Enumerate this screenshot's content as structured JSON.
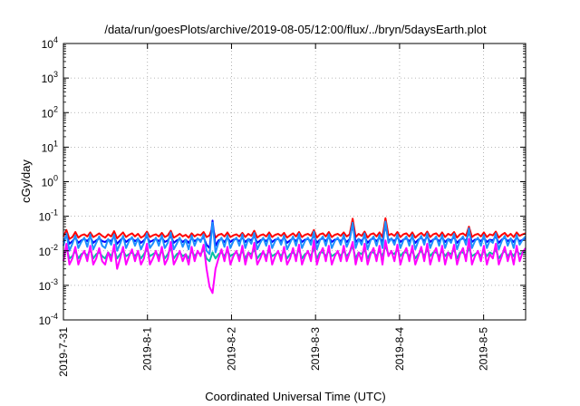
{
  "chart_data": {
    "type": "line",
    "title": "/data/run/goesPlots/archive/2019-08-05/12:00/flux/../bryn/5daysEarth.plot",
    "xlabel": "Coordinated Universal Time (UTC)",
    "ylabel": "cGy/day",
    "yscale": "log",
    "ylim": [
      0.0001,
      10000
    ],
    "xlim": [
      0,
      5.5
    ],
    "x_unit": "days since 2019-07-31 00:00 UTC",
    "grid": true,
    "legend": "none",
    "x_ticks": [
      {
        "x": 0,
        "label": "2019-7-31"
      },
      {
        "x": 1,
        "label": "2019-8-1"
      },
      {
        "x": 2,
        "label": "2019-8-2"
      },
      {
        "x": 3,
        "label": "2019-8-3"
      },
      {
        "x": 4,
        "label": "2019-8-4"
      },
      {
        "x": 5,
        "label": "2019-8-5"
      }
    ],
    "y_ticks": [
      {
        "exp": -4,
        "value": 0.0001
      },
      {
        "exp": -3,
        "value": 0.001
      },
      {
        "exp": -2,
        "value": 0.01
      },
      {
        "exp": -1,
        "value": 0.1
      },
      {
        "exp": 0,
        "value": 1
      },
      {
        "exp": 1,
        "value": 10
      },
      {
        "exp": 2,
        "value": 100
      },
      {
        "exp": 3,
        "value": 1000
      },
      {
        "exp": 4,
        "value": 10000
      }
    ],
    "series": [
      {
        "color": "#ff0000",
        "values": [
          0.026,
          0.04,
          0.022,
          0.025,
          0.035,
          0.024,
          0.028,
          0.03,
          0.026,
          0.034,
          0.025,
          0.028,
          0.032,
          0.027,
          0.024,
          0.03,
          0.026,
          0.037,
          0.023,
          0.028,
          0.034,
          0.025,
          0.029,
          0.032,
          0.026,
          0.031,
          0.024,
          0.027,
          0.036,
          0.025,
          0.028,
          0.03,
          0.026,
          0.033,
          0.025,
          0.028,
          0.038,
          0.024,
          0.027,
          0.031,
          0.026,
          0.029,
          0.024,
          0.032,
          0.026,
          0.03,
          0.028,
          0.035,
          0.025,
          0.028,
          0.048,
          0.024,
          0.029,
          0.031,
          0.026,
          0.034,
          0.025,
          0.028,
          0.03,
          0.026,
          0.033,
          0.025,
          0.031,
          0.027,
          0.038,
          0.024,
          0.028,
          0.03,
          0.026,
          0.034,
          0.025,
          0.029,
          0.031,
          0.027,
          0.033,
          0.024,
          0.028,
          0.032,
          0.026,
          0.035,
          0.025,
          0.029,
          0.031,
          0.027,
          0.04,
          0.024,
          0.03,
          0.032,
          0.026,
          0.035,
          0.025,
          0.029,
          0.031,
          0.027,
          0.034,
          0.026,
          0.03,
          0.085,
          0.025,
          0.031,
          0.027,
          0.036,
          0.024,
          0.03,
          0.032,
          0.026,
          0.034,
          0.025,
          0.088,
          0.028,
          0.031,
          0.027,
          0.035,
          0.025,
          0.03,
          0.032,
          0.026,
          0.034,
          0.024,
          0.029,
          0.033,
          0.027,
          0.036,
          0.025,
          0.03,
          0.032,
          0.026,
          0.034,
          0.025,
          0.031,
          0.028,
          0.035,
          0.024,
          0.03,
          0.032,
          0.027,
          0.05,
          0.025,
          0.029,
          0.031,
          0.026,
          0.034,
          0.025,
          0.03,
          0.028,
          0.036,
          0.024,
          0.029,
          0.033,
          0.026,
          0.031,
          0.025,
          0.034,
          0.027,
          0.03,
          0.032
        ]
      },
      {
        "color": "#0000ff",
        "values": [
          0.018,
          0.028,
          0.016,
          0.019,
          0.024,
          0.017,
          0.02,
          0.022,
          0.019,
          0.025,
          0.017,
          0.02,
          0.023,
          0.019,
          0.018,
          0.021,
          0.019,
          0.026,
          0.016,
          0.02,
          0.024,
          0.018,
          0.021,
          0.023,
          0.019,
          0.022,
          0.017,
          0.02,
          0.026,
          0.018,
          0.02,
          0.022,
          0.019,
          0.024,
          0.018,
          0.02,
          0.027,
          0.017,
          0.02,
          0.022,
          0.018,
          0.021,
          0.017,
          0.023,
          0.019,
          0.022,
          0.02,
          0.025,
          0.015,
          0.012,
          0.075,
          0.014,
          0.02,
          0.022,
          0.018,
          0.024,
          0.018,
          0.021,
          0.022,
          0.019,
          0.024,
          0.018,
          0.022,
          0.02,
          0.027,
          0.017,
          0.02,
          0.022,
          0.019,
          0.024,
          0.018,
          0.021,
          0.022,
          0.019,
          0.024,
          0.017,
          0.02,
          0.023,
          0.019,
          0.025,
          0.018,
          0.021,
          0.022,
          0.019,
          0.028,
          0.017,
          0.021,
          0.023,
          0.019,
          0.025,
          0.018,
          0.021,
          0.022,
          0.019,
          0.024,
          0.018,
          0.022,
          0.06,
          0.018,
          0.022,
          0.019,
          0.026,
          0.017,
          0.021,
          0.023,
          0.019,
          0.024,
          0.018,
          0.058,
          0.02,
          0.022,
          0.019,
          0.025,
          0.018,
          0.021,
          0.023,
          0.019,
          0.024,
          0.017,
          0.021,
          0.024,
          0.019,
          0.026,
          0.018,
          0.021,
          0.023,
          0.019,
          0.024,
          0.018,
          0.022,
          0.02,
          0.025,
          0.017,
          0.021,
          0.023,
          0.019,
          0.035,
          0.018,
          0.021,
          0.022,
          0.019,
          0.024,
          0.018,
          0.021,
          0.02,
          0.026,
          0.017,
          0.021,
          0.024,
          0.019,
          0.022,
          0.018,
          0.024,
          0.019,
          0.021,
          0.023
        ]
      },
      {
        "color": "#1e90ff",
        "values": [
          0.014,
          0.032,
          0.01,
          0.016,
          0.028,
          0.012,
          0.018,
          0.024,
          0.013,
          0.03,
          0.011,
          0.017,
          0.026,
          0.014,
          0.012,
          0.022,
          0.015,
          0.03,
          0.01,
          0.016,
          0.027,
          0.012,
          0.019,
          0.025,
          0.014,
          0.023,
          0.011,
          0.017,
          0.032,
          0.012,
          0.016,
          0.024,
          0.014,
          0.028,
          0.012,
          0.017,
          0.034,
          0.011,
          0.016,
          0.024,
          0.013,
          0.021,
          0.011,
          0.028,
          0.014,
          0.023,
          0.018,
          0.03,
          0.01,
          0.008,
          0.065,
          0.009,
          0.017,
          0.024,
          0.013,
          0.028,
          0.012,
          0.019,
          0.024,
          0.014,
          0.03,
          0.012,
          0.022,
          0.016,
          0.033,
          0.011,
          0.017,
          0.024,
          0.014,
          0.029,
          0.012,
          0.019,
          0.024,
          0.015,
          0.028,
          0.011,
          0.017,
          0.026,
          0.014,
          0.031,
          0.012,
          0.019,
          0.024,
          0.015,
          0.036,
          0.011,
          0.02,
          0.026,
          0.014,
          0.03,
          0.012,
          0.019,
          0.024,
          0.015,
          0.029,
          0.013,
          0.021,
          0.065,
          0.012,
          0.022,
          0.015,
          0.032,
          0.011,
          0.02,
          0.026,
          0.014,
          0.029,
          0.012,
          0.07,
          0.017,
          0.023,
          0.015,
          0.03,
          0.012,
          0.02,
          0.026,
          0.014,
          0.029,
          0.011,
          0.019,
          0.027,
          0.015,
          0.032,
          0.012,
          0.02,
          0.026,
          0.014,
          0.029,
          0.012,
          0.022,
          0.017,
          0.031,
          0.011,
          0.02,
          0.026,
          0.015,
          0.045,
          0.012,
          0.019,
          0.024,
          0.014,
          0.029,
          0.012,
          0.02,
          0.017,
          0.032,
          0.011,
          0.019,
          0.027,
          0.014,
          0.023,
          0.012,
          0.029,
          0.015,
          0.021,
          0.026
        ]
      },
      {
        "color": "#00c0a0",
        "values": [
          0.007,
          0.012,
          0.006,
          0.007,
          0.01,
          0.006,
          0.008,
          0.009,
          0.007,
          0.011,
          0.006,
          0.008,
          0.009,
          0.007,
          0.006,
          0.009,
          0.007,
          0.011,
          0.006,
          0.008,
          0.01,
          0.007,
          0.008,
          0.009,
          0.007,
          0.009,
          0.006,
          0.008,
          0.011,
          0.007,
          0.008,
          0.009,
          0.007,
          0.01,
          0.006,
          0.008,
          0.012,
          0.006,
          0.008,
          0.009,
          0.007,
          0.008,
          0.006,
          0.01,
          0.007,
          0.009,
          0.008,
          0.011,
          0.006,
          0.005,
          0.009,
          0.006,
          0.008,
          0.009,
          0.007,
          0.01,
          0.007,
          0.008,
          0.009,
          0.007,
          0.01,
          0.006,
          0.009,
          0.008,
          0.011,
          0.006,
          0.008,
          0.009,
          0.007,
          0.01,
          0.007,
          0.008,
          0.009,
          0.007,
          0.01,
          0.006,
          0.008,
          0.009,
          0.007,
          0.011,
          0.006,
          0.008,
          0.009,
          0.007,
          0.012,
          0.006,
          0.009,
          0.009,
          0.007,
          0.01,
          0.007,
          0.008,
          0.009,
          0.007,
          0.01,
          0.007,
          0.009,
          0.014,
          0.006,
          0.009,
          0.008,
          0.011,
          0.006,
          0.009,
          0.009,
          0.007,
          0.01,
          0.007,
          0.014,
          0.008,
          0.009,
          0.008,
          0.011,
          0.007,
          0.009,
          0.009,
          0.007,
          0.01,
          0.006,
          0.008,
          0.01,
          0.007,
          0.011,
          0.007,
          0.009,
          0.009,
          0.007,
          0.01,
          0.007,
          0.009,
          0.008,
          0.011,
          0.006,
          0.009,
          0.009,
          0.007,
          0.012,
          0.007,
          0.008,
          0.009,
          0.007,
          0.01,
          0.007,
          0.009,
          0.008,
          0.011,
          0.006,
          0.008,
          0.01,
          0.007,
          0.009,
          0.007,
          0.01,
          0.008,
          0.009,
          0.009
        ]
      },
      {
        "color": "#ff00ff",
        "values": [
          0.005,
          0.016,
          0.004,
          0.006,
          0.013,
          0.004,
          0.007,
          0.01,
          0.005,
          0.014,
          0.004,
          0.006,
          0.012,
          0.005,
          0.004,
          0.009,
          0.005,
          0.015,
          0.003,
          0.006,
          0.013,
          0.004,
          0.007,
          0.011,
          0.005,
          0.01,
          0.004,
          0.006,
          0.016,
          0.004,
          0.006,
          0.01,
          0.005,
          0.013,
          0.004,
          0.006,
          0.018,
          0.004,
          0.006,
          0.01,
          0.005,
          0.008,
          0.004,
          0.013,
          0.005,
          0.01,
          0.007,
          0.015,
          0.003,
          0.0009,
          0.0006,
          0.003,
          0.006,
          0.011,
          0.005,
          0.013,
          0.004,
          0.007,
          0.01,
          0.005,
          0.014,
          0.004,
          0.009,
          0.006,
          0.017,
          0.004,
          0.006,
          0.01,
          0.005,
          0.014,
          0.004,
          0.007,
          0.01,
          0.005,
          0.013,
          0.004,
          0.006,
          0.012,
          0.005,
          0.015,
          0.004,
          0.007,
          0.01,
          0.005,
          0.02,
          0.004,
          0.008,
          0.012,
          0.005,
          0.014,
          0.004,
          0.007,
          0.01,
          0.005,
          0.014,
          0.005,
          0.009,
          0.018,
          0.004,
          0.009,
          0.005,
          0.016,
          0.004,
          0.008,
          0.012,
          0.005,
          0.014,
          0.004,
          0.02,
          0.007,
          0.01,
          0.005,
          0.015,
          0.004,
          0.008,
          0.012,
          0.005,
          0.014,
          0.004,
          0.007,
          0.013,
          0.005,
          0.016,
          0.004,
          0.008,
          0.012,
          0.005,
          0.014,
          0.004,
          0.009,
          0.006,
          0.015,
          0.004,
          0.008,
          0.012,
          0.005,
          0.022,
          0.004,
          0.007,
          0.01,
          0.005,
          0.014,
          0.004,
          0.008,
          0.006,
          0.016,
          0.004,
          0.007,
          0.013,
          0.005,
          0.01,
          0.004,
          0.014,
          0.005,
          0.009,
          0.012
        ]
      }
    ]
  }
}
